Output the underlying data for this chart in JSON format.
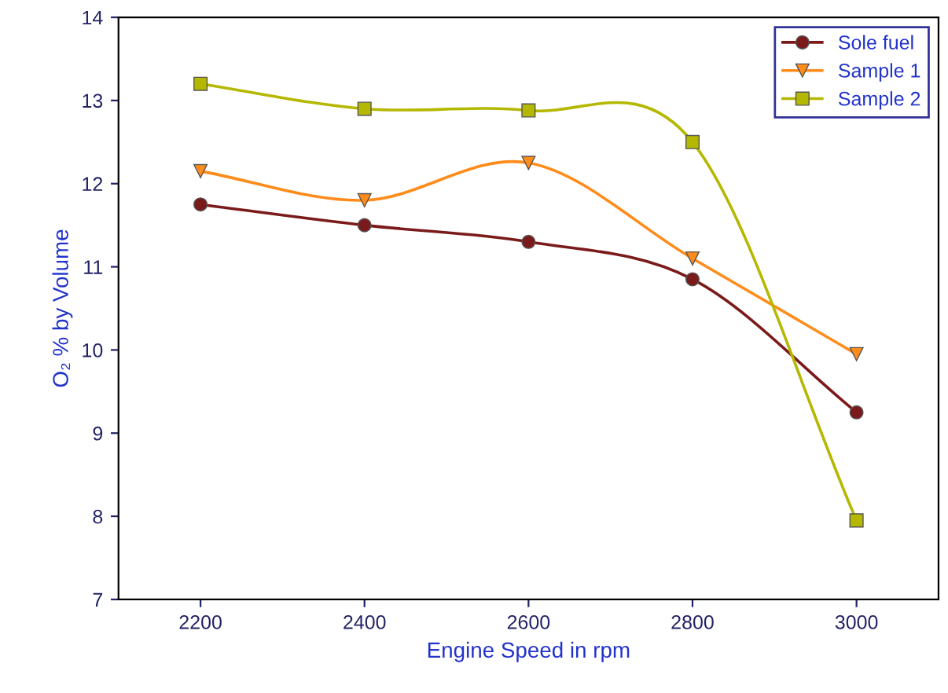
{
  "chart_data": {
    "type": "line",
    "xlabel": "Engine Speed in rpm",
    "ylabel": "O₂ % by Volume",
    "x": [
      2200,
      2400,
      2600,
      2800,
      3000
    ],
    "series": [
      {
        "name": "Sole fuel",
        "color": "#7b1a1a",
        "marker": "circle",
        "values": [
          11.75,
          11.5,
          11.3,
          10.85,
          9.25
        ]
      },
      {
        "name": "Sample 1",
        "color": "#ff8c1a",
        "marker": "triangle",
        "values": [
          12.15,
          11.8,
          12.25,
          11.1,
          9.95
        ]
      },
      {
        "name": "Sample 2",
        "color": "#b5b800",
        "marker": "square",
        "values": [
          13.2,
          12.9,
          12.88,
          12.5,
          7.95
        ]
      }
    ],
    "xlim": [
      2100,
      3100
    ],
    "xticks": [
      2200,
      2400,
      2600,
      2800,
      3000
    ],
    "ylim": [
      7,
      14
    ],
    "yticks": [
      7,
      8,
      9,
      10,
      11,
      12,
      13,
      14
    ],
    "grid": false,
    "legend": "top right",
    "line_style": "solid"
  }
}
